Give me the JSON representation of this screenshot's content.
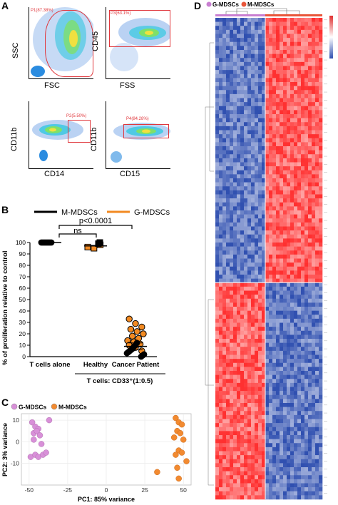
{
  "panels": {
    "A": {
      "letter": "A",
      "plots": [
        {
          "x_label": "FSC",
          "y_label": "SSC",
          "gate_label": "P1(87.38%)"
        },
        {
          "x_label": "FSS",
          "y_label": "CD45",
          "gate_label": "P3(63.1%)"
        },
        {
          "x_label": "CD14",
          "y_label": "CD11b",
          "gate_label": "P2(5.50%)"
        },
        {
          "x_label": "CD15",
          "y_label": "CD11b",
          "gate_label": "P4(84.28%)"
        }
      ]
    },
    "B": {
      "letter": "B",
      "legend": [
        "M-MDSCs",
        "G-MDSCs"
      ],
      "colors": {
        "m_mdsc": "#000000",
        "g_mdsc": "#f28a22"
      },
      "sig_ns": "ns",
      "sig_p": "p<0.0001",
      "y_label": "% of proliferation relative to control",
      "categories": [
        "T cells alone",
        "Healthy",
        "Cancer Patient"
      ],
      "group_label": "T cells: CD33⁺(1:0.5)"
    },
    "C": {
      "letter": "C",
      "legend": [
        "G-MDSCs",
        "M-MDSCs"
      ],
      "colors": {
        "g_mdsc": "#d890d8",
        "m_mdsc": "#f28a30"
      },
      "x_label": "PC1: 85% variance",
      "y_label": "PC2: 3% variance"
    },
    "D": {
      "letter": "D",
      "legend": [
        "G-MDSCs",
        "M-MDSCs"
      ],
      "colors": {
        "g_mdsc": "#c97fd1",
        "m_mdsc": "#e8563a",
        "high": "#e03030",
        "low": "#3050b0"
      }
    }
  },
  "chart_data": [
    {
      "type": "scatter",
      "panel": "B",
      "categories": [
        "T cells alone",
        "Healthy",
        "Cancer Patient"
      ],
      "ylim": [
        0,
        100
      ],
      "yticks": [
        0,
        10,
        20,
        30,
        40,
        50,
        60,
        70,
        80,
        90,
        100
      ],
      "series": [
        {
          "name": "M-MDSCs",
          "x_index": [
            0,
            0,
            0,
            0,
            0,
            0,
            0,
            0,
            1,
            1,
            2,
            2,
            2,
            2,
            2,
            2,
            2,
            2,
            2,
            2,
            2
          ],
          "values": [
            100,
            100,
            100,
            100,
            100,
            100,
            100,
            100,
            99,
            100,
            0,
            1,
            2,
            3,
            4,
            5,
            6,
            7,
            9,
            10,
            12
          ]
        },
        {
          "name": "G-MDSCs",
          "x_index": [
            1,
            1,
            1,
            2,
            2,
            2,
            2,
            2,
            2,
            2,
            2,
            2,
            2,
            2,
            2,
            2,
            2
          ],
          "values": [
            96,
            95,
            98,
            33,
            29,
            26,
            24,
            22,
            20,
            18,
            16,
            14,
            13,
            11,
            10,
            8,
            5
          ]
        }
      ],
      "means": [
        100,
        97,
        9
      ],
      "ylabel": "% of proliferation relative to control"
    },
    {
      "type": "scatter",
      "panel": "C",
      "xlabel": "PC1: 85% variance",
      "ylabel": "PC2: 3% variance",
      "xlim": [
        -55,
        55
      ],
      "ylim": [
        -20,
        13
      ],
      "xticks": [
        -50,
        -25,
        0,
        25,
        50
      ],
      "yticks": [
        -10,
        0,
        10
      ],
      "series": [
        {
          "name": "G-MDSCs",
          "x": [
            -48,
            -46,
            -44,
            -47,
            -45,
            -43,
            -37,
            -49,
            -46,
            -44,
            -41,
            -39,
            -42,
            -47
          ],
          "y": [
            9,
            7,
            6,
            4,
            5,
            3,
            10,
            -7,
            -6,
            -7,
            -6,
            -5,
            -1,
            1
          ]
        },
        {
          "name": "M-MDSCs",
          "x": [
            45,
            47,
            49,
            46,
            48,
            44,
            50,
            47,
            49,
            45,
            52,
            46,
            33,
            47
          ],
          "y": [
            11,
            9,
            8,
            5,
            4,
            2,
            1,
            -4,
            -5,
            -6,
            -9,
            -12,
            -14,
            -17
          ]
        }
      ]
    },
    {
      "type": "heatmap",
      "panel": "D",
      "columns": 30,
      "rows": 120,
      "groups": [
        "G-MDSCs",
        "M-MDSCs"
      ],
      "group_sizes": [
        14,
        16
      ],
      "pattern": "upper rows low in G-MDSCs / high in M-MDSCs; lower rows the reverse"
    }
  ]
}
